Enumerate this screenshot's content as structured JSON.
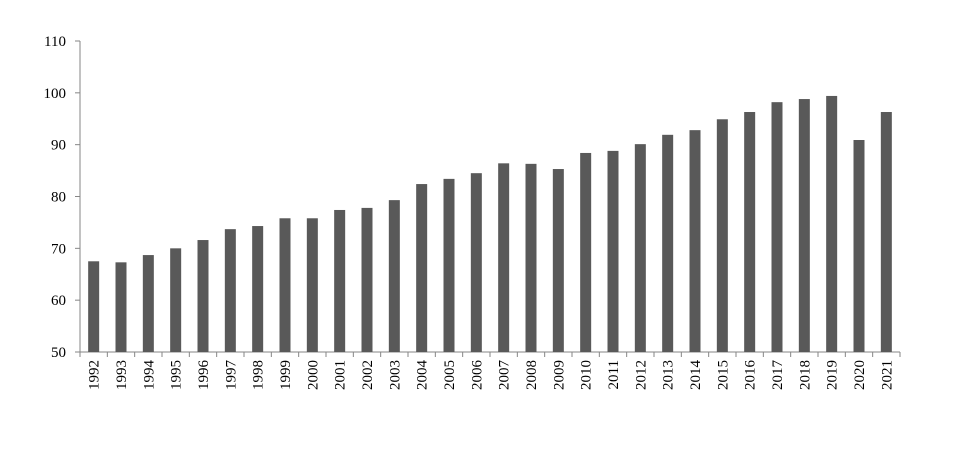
{
  "chart_data": {
    "type": "bar",
    "categories": [
      "1992",
      "1993",
      "1994",
      "1995",
      "1996",
      "1997",
      "1998",
      "1999",
      "2000",
      "2001",
      "2002",
      "2003",
      "2004",
      "2005",
      "2006",
      "2007",
      "2008",
      "2009",
      "2010",
      "2011",
      "2012",
      "2013",
      "2014",
      "2015",
      "2016",
      "2017",
      "2018",
      "2019",
      "2020",
      "2021"
    ],
    "values": [
      67.5,
      67.3,
      68.7,
      70.0,
      71.6,
      73.7,
      74.3,
      75.8,
      75.8,
      77.4,
      77.8,
      79.3,
      82.4,
      83.4,
      84.5,
      86.4,
      86.3,
      85.3,
      88.4,
      88.8,
      90.1,
      91.9,
      92.8,
      94.9,
      96.3,
      98.2,
      98.8,
      99.4,
      90.9,
      96.3
    ],
    "color": "#595959",
    "ylim": [
      50,
      110
    ],
    "yticks": [
      50,
      60,
      70,
      80,
      90,
      100,
      110
    ],
    "grid": false
  }
}
